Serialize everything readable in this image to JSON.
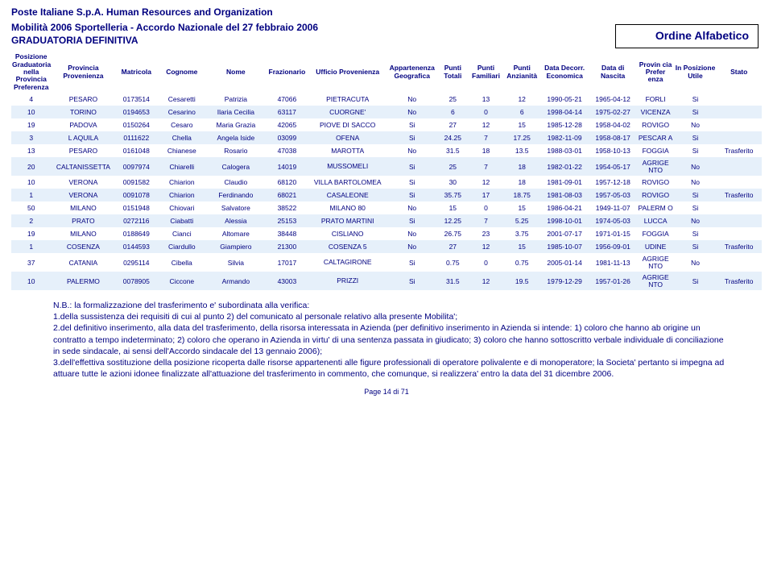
{
  "header": {
    "org": "Poste Italiane S.p.A. Human Resources and Organization",
    "title_line1": "Mobilità 2006 Sportelleria - Accordo Nazionale del 27 febbraio 2006",
    "title_line2": "GRADUATORIA DEFINITIVA",
    "ordine": "Ordine Alfabetico"
  },
  "columns": [
    "Posizione Graduatoria nella Provincia Preferenza",
    "Provincia Provenienza",
    "Matricola",
    "Cognome",
    "Nome",
    "Frazionario",
    "Ufficio Provenienza",
    "Appartenenza Geografica",
    "Punti Totali",
    "Punti Familiari",
    "Punti Anzianità",
    "Data Decorr. Economica",
    "Data di Nascita",
    "Provin cia Prefer enza",
    "In Posizione Utile",
    "Stato"
  ],
  "rows": [
    {
      "pos": "4",
      "prov": "PESARO",
      "mat": "0173514",
      "cog": "Cesaretti",
      "nome": "Patrizia",
      "fraz": "47066",
      "uff": "PIETRACUTA",
      "geo": "No",
      "pt": "25",
      "pf": "13",
      "pa": "12",
      "de": "1990-05-21",
      "dn": "1965-04-12",
      "pref": "FORLI",
      "util": "Si",
      "stato": ""
    },
    {
      "pos": "10",
      "prov": "TORINO",
      "mat": "0194653",
      "cog": "Cesarino",
      "nome": "Ilaria Cecilia",
      "fraz": "63117",
      "uff": "CUORGNE'",
      "geo": "No",
      "pt": "6",
      "pf": "0",
      "pa": "6",
      "de": "1998-04-14",
      "dn": "1975-02-27",
      "pref": "VICENZA",
      "util": "Si",
      "stato": ""
    },
    {
      "pos": "19",
      "prov": "PADOVA",
      "mat": "0150264",
      "cog": "Cesaro",
      "nome": "Maria Grazia",
      "fraz": "42065",
      "uff": "PIOVE DI SACCO",
      "geo": "Si",
      "pt": "27",
      "pf": "12",
      "pa": "15",
      "de": "1985-12-28",
      "dn": "1958-04-02",
      "pref": "ROVIGO",
      "util": "No",
      "stato": ""
    },
    {
      "pos": "3",
      "prov": "L AQUILA",
      "mat": "0111622",
      "cog": "Chella",
      "nome": "Angela Iside",
      "fraz": "03099",
      "uff": "OFENA",
      "geo": "Si",
      "pt": "24.25",
      "pf": "7",
      "pa": "17.25",
      "de": "1982-11-09",
      "dn": "1958-08-17",
      "pref": "PESCAR A",
      "util": "Si",
      "stato": ""
    },
    {
      "pos": "13",
      "prov": "PESARO",
      "mat": "0161048",
      "cog": "Chianese",
      "nome": "Rosario",
      "fraz": "47038",
      "uff": "MAROTTA",
      "geo": "No",
      "pt": "31.5",
      "pf": "18",
      "pa": "13.5",
      "de": "1988-03-01",
      "dn": "1958-10-13",
      "pref": "FOGGIA",
      "util": "Si",
      "stato": "Trasferito"
    },
    {
      "pos": "20",
      "prov": "CALTANISSETTA",
      "mat": "0097974",
      "cog": "Chiarelli",
      "nome": "Calogera",
      "fraz": "14019",
      "uff": "MUSSOMELI",
      "geo": "Si",
      "pt": "25",
      "pf": "7",
      "pa": "18",
      "de": "1982-01-22",
      "dn": "1954-05-17",
      "pref": "AGRIGE NTO",
      "util": "No",
      "stato": ""
    },
    {
      "pos": "10",
      "prov": "VERONA",
      "mat": "0091582",
      "cog": "Chiarion",
      "nome": "Claudio",
      "fraz": "68120",
      "uff": "VILLA BARTOLOMEA",
      "geo": "Si",
      "pt": "30",
      "pf": "12",
      "pa": "18",
      "de": "1981-09-01",
      "dn": "1957-12-18",
      "pref": "ROVIGO",
      "util": "No",
      "stato": ""
    },
    {
      "pos": "1",
      "prov": "VERONA",
      "mat": "0091078",
      "cog": "Chiarion",
      "nome": "Ferdinando",
      "fraz": "68021",
      "uff": "CASALEONE",
      "geo": "Si",
      "pt": "35.75",
      "pf": "17",
      "pa": "18.75",
      "de": "1981-08-03",
      "dn": "1957-05-03",
      "pref": "ROVIGO",
      "util": "Si",
      "stato": "Trasferito"
    },
    {
      "pos": "50",
      "prov": "MILANO",
      "mat": "0151948",
      "cog": "Chiovari",
      "nome": "Salvatore",
      "fraz": "38522",
      "uff": "MILANO 80",
      "geo": "No",
      "pt": "15",
      "pf": "0",
      "pa": "15",
      "de": "1986-04-21",
      "dn": "1949-11-07",
      "pref": "PALERM O",
      "util": "Si",
      "stato": ""
    },
    {
      "pos": "2",
      "prov": "PRATO",
      "mat": "0272116",
      "cog": "Ciabatti",
      "nome": "Alessia",
      "fraz": "25153",
      "uff": "PRATO MARTINI",
      "geo": "Si",
      "pt": "12.25",
      "pf": "7",
      "pa": "5.25",
      "de": "1998-10-01",
      "dn": "1974-05-03",
      "pref": "LUCCA",
      "util": "No",
      "stato": ""
    },
    {
      "pos": "19",
      "prov": "MILANO",
      "mat": "0188649",
      "cog": "Cianci",
      "nome": "Altomare",
      "fraz": "38448",
      "uff": "CISLIANO",
      "geo": "No",
      "pt": "26.75",
      "pf": "23",
      "pa": "3.75",
      "de": "2001-07-17",
      "dn": "1971-01-15",
      "pref": "FOGGIA",
      "util": "Si",
      "stato": ""
    },
    {
      "pos": "1",
      "prov": "COSENZA",
      "mat": "0144593",
      "cog": "Ciardullo",
      "nome": "Giampiero",
      "fraz": "21300",
      "uff": "COSENZA 5",
      "geo": "No",
      "pt": "27",
      "pf": "12",
      "pa": "15",
      "de": "1985-10-07",
      "dn": "1956-09-01",
      "pref": "UDINE",
      "util": "Si",
      "stato": "Trasferito"
    },
    {
      "pos": "37",
      "prov": "CATANIA",
      "mat": "0295114",
      "cog": "Cibella",
      "nome": "Silvia",
      "fraz": "17017",
      "uff": "CALTAGIRONE",
      "geo": "Si",
      "pt": "0.75",
      "pf": "0",
      "pa": "0.75",
      "de": "2005-01-14",
      "dn": "1981-11-13",
      "pref": "AGRIGE NTO",
      "util": "No",
      "stato": ""
    },
    {
      "pos": "10",
      "prov": "PALERMO",
      "mat": "0078905",
      "cog": "Ciccone",
      "nome": "Armando",
      "fraz": "43003",
      "uff": "PRIZZI",
      "geo": "Si",
      "pt": "31.5",
      "pf": "12",
      "pa": "19.5",
      "de": "1979-12-29",
      "dn": "1957-01-26",
      "pref": "AGRIGE NTO",
      "util": "Si",
      "stato": "Trasferito"
    }
  ],
  "footnote": {
    "title": "N.B.: la formalizzazione del trasferimento e' subordinata alla verifica:",
    "l1": "1.della sussistenza dei requisiti di cui al punto 2) del comunicato al personale relativo alla presente Mobilita';",
    "l2": " 2.del definitivo inserimento, alla data del trasferimento, della risorsa interessata in Azienda (per definitivo inserimento in Azienda si intende: 1) coloro che hanno ab origine un contratto a tempo indeterminato; 2) coloro che operano in Azienda in virtu' di una sentenza passata in giudicato; 3) coloro che hanno sottoscritto verbale individuale di conciliazione in sede sindacale, ai sensi dell'Accordo sindacale del 13 gennaio 2006);",
    "l3": " 3.dell'effettiva sostituzione della posizione ricoperta dalle risorse appartenenti alle figure professionali di operatore polivalente e di monoperatore; la Societa' pertanto si impegna ad attuare tutte le azioni idonee finalizzate all'attuazione del trasferimento in commento, che comunque, si realizzera' entro la data del 31 dicembre 2006."
  },
  "footer": "Page 14 di 71",
  "colwidths": [
    "42px",
    "68px",
    "44px",
    "52px",
    "62px",
    "46px",
    "82px",
    "54px",
    "32px",
    "38px",
    "38px",
    "52px",
    "50px",
    "40px",
    "44px",
    "48px"
  ]
}
